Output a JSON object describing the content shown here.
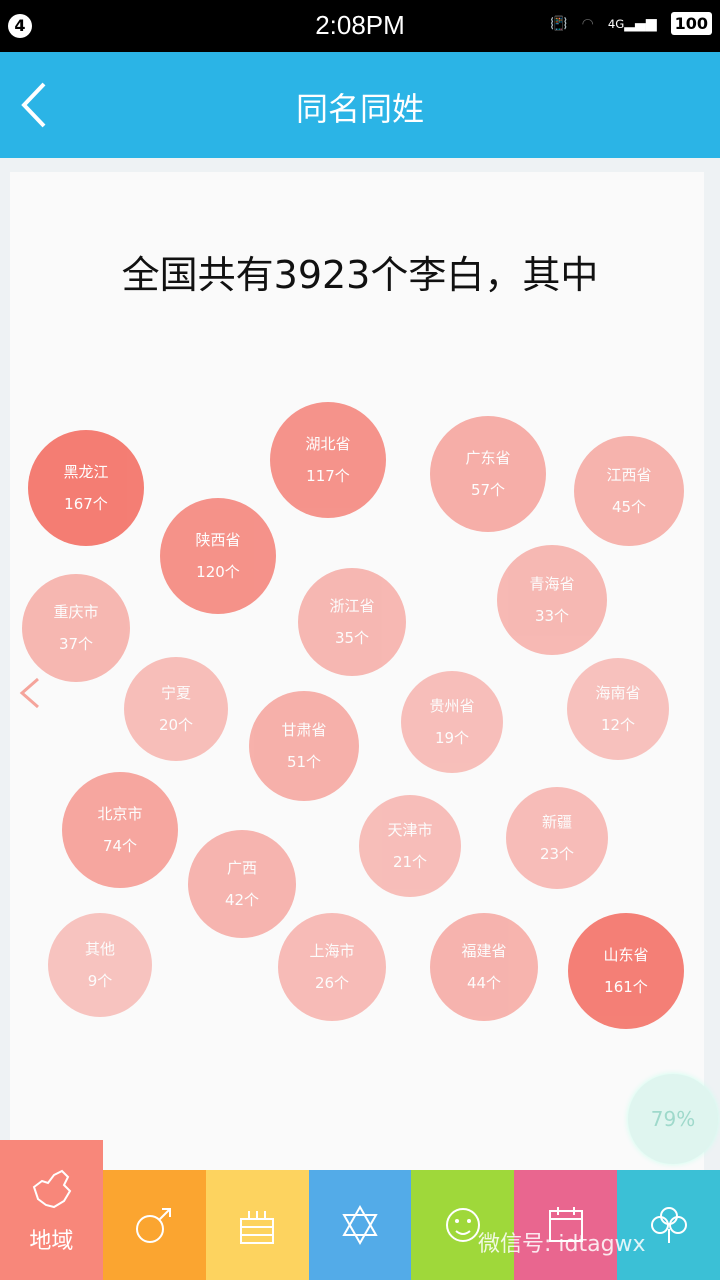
{
  "status_bar": {
    "notification_count": "4",
    "time": "2:08PM",
    "battery": "100",
    "network": "4G"
  },
  "header": {
    "title": "同名同姓",
    "back_icon": "chevron-left-icon"
  },
  "headline": "全国共有3923个李白，其中",
  "bubble_color": "#f47c72",
  "regions": [
    {
      "name": "黑龙江",
      "count": "167个",
      "value": 167
    },
    {
      "name": "湖北省",
      "count": "117个",
      "value": 117
    },
    {
      "name": "广东省",
      "count": "57个",
      "value": 57
    },
    {
      "name": "江西省",
      "count": "45个",
      "value": 45
    },
    {
      "name": "陕西省",
      "count": "120个",
      "value": 120
    },
    {
      "name": "重庆市",
      "count": "37个",
      "value": 37
    },
    {
      "name": "浙江省",
      "count": "35个",
      "value": 35
    },
    {
      "name": "青海省",
      "count": "33个",
      "value": 33
    },
    {
      "name": "宁夏",
      "count": "20个",
      "value": 20
    },
    {
      "name": "甘肃省",
      "count": "51个",
      "value": 51
    },
    {
      "name": "贵州省",
      "count": "19个",
      "value": 19
    },
    {
      "name": "海南省",
      "count": "12个",
      "value": 12
    },
    {
      "name": "北京市",
      "count": "74个",
      "value": 74
    },
    {
      "name": "天津市",
      "count": "21个",
      "value": 21
    },
    {
      "name": "新疆",
      "count": "23个",
      "value": 23
    },
    {
      "name": "广西",
      "count": "42个",
      "value": 42
    },
    {
      "name": "其他",
      "count": "9个",
      "value": 9
    },
    {
      "name": "上海市",
      "count": "26个",
      "value": 26
    },
    {
      "name": "福建省",
      "count": "44个",
      "value": 44
    },
    {
      "name": "山东省",
      "count": "161个",
      "value": 161
    }
  ],
  "progress": "79%",
  "tabs": [
    {
      "label": "地域",
      "icon": "china-map-icon",
      "color": "#f8877a"
    },
    {
      "icon": "male-symbol-icon",
      "color": "#fba530"
    },
    {
      "icon": "birthday-cake-icon",
      "color": "#fdd35f"
    },
    {
      "icon": "star-of-david-icon",
      "color": "#53abe8"
    },
    {
      "icon": "monkey-zodiac-icon",
      "color": "#9fd83a"
    },
    {
      "icon": "calendar-icon",
      "color": "#e9668f"
    },
    {
      "icon": "clover-icon",
      "color": "#3bc0d6"
    }
  ],
  "watermark": "微信号: idtagwx"
}
